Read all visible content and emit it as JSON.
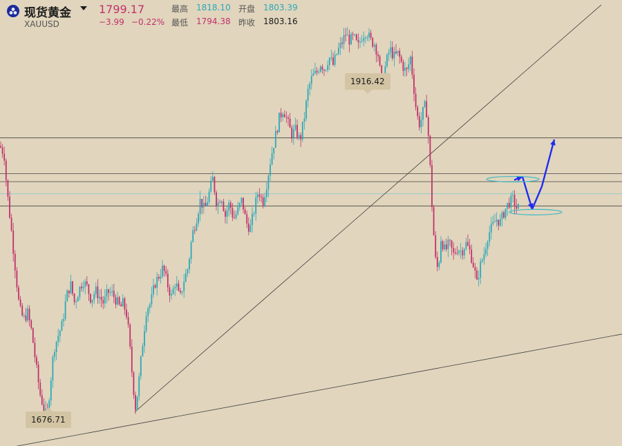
{
  "header": {
    "symbol_name": "现货黄金",
    "symbol_code": "XAUUSD",
    "last_price": "1799.17",
    "change": "−3.99",
    "change_pct": "−0.22%",
    "high_label": "最高",
    "high_value": "1818.10",
    "open_label": "开盘",
    "open_value": "1803.39",
    "low_label": "最低",
    "low_value": "1794.38",
    "prev_close_label": "昨收",
    "prev_close_value": "1803.16"
  },
  "colors": {
    "background": "#e1d5bd",
    "up": "#2aa8b8",
    "down": "#c0306a",
    "projection_arrow": "#1f2cf0",
    "ellipse": "#3fb8c4",
    "trendline": "#444444"
  },
  "chart_data": {
    "type": "candlestick",
    "instrument": "XAUUSD",
    "ylim": [
      1660,
      1935
    ],
    "max_label": "1916.42",
    "min_label": "1676.71",
    "path": [
      [
        0,
        1845
      ],
      [
        6,
        1840
      ],
      [
        10,
        1818
      ],
      [
        16,
        1795
      ],
      [
        22,
        1770
      ],
      [
        28,
        1745
      ],
      [
        34,
        1738
      ],
      [
        40,
        1742
      ],
      [
        46,
        1730
      ],
      [
        52,
        1710
      ],
      [
        58,
        1692
      ],
      [
        63,
        1684
      ],
      [
        68,
        1677
      ],
      [
        72,
        1695
      ],
      [
        78,
        1720
      ],
      [
        84,
        1728
      ],
      [
        90,
        1735
      ],
      [
        96,
        1752
      ],
      [
        102,
        1760
      ],
      [
        108,
        1748
      ],
      [
        114,
        1756
      ],
      [
        120,
        1762
      ],
      [
        126,
        1758
      ],
      [
        132,
        1750
      ],
      [
        138,
        1756
      ],
      [
        144,
        1752
      ],
      [
        150,
        1748
      ],
      [
        156,
        1755
      ],
      [
        162,
        1754
      ],
      [
        168,
        1750
      ],
      [
        174,
        1745
      ],
      [
        178,
        1748
      ],
      [
        184,
        1740
      ],
      [
        188,
        1720
      ],
      [
        192,
        1700
      ],
      [
        196,
        1684
      ],
      [
        200,
        1696
      ],
      [
        206,
        1722
      ],
      [
        212,
        1745
      ],
      [
        218,
        1748
      ],
      [
        224,
        1760
      ],
      [
        230,
        1765
      ],
      [
        236,
        1770
      ],
      [
        242,
        1760
      ],
      [
        248,
        1752
      ],
      [
        254,
        1762
      ],
      [
        260,
        1750
      ],
      [
        266,
        1762
      ],
      [
        272,
        1770
      ],
      [
        278,
        1790
      ],
      [
        284,
        1800
      ],
      [
        290,
        1812
      ],
      [
        296,
        1805
      ],
      [
        302,
        1815
      ],
      [
        308,
        1825
      ],
      [
        314,
        1808
      ],
      [
        320,
        1815
      ],
      [
        326,
        1802
      ],
      [
        332,
        1810
      ],
      [
        338,
        1800
      ],
      [
        344,
        1805
      ],
      [
        350,
        1812
      ],
      [
        356,
        1798
      ],
      [
        362,
        1794
      ],
      [
        368,
        1806
      ],
      [
        374,
        1818
      ],
      [
        380,
        1810
      ],
      [
        386,
        1822
      ],
      [
        392,
        1838
      ],
      [
        398,
        1850
      ],
      [
        404,
        1862
      ],
      [
        410,
        1868
      ],
      [
        416,
        1860
      ],
      [
        422,
        1852
      ],
      [
        428,
        1855
      ],
      [
        434,
        1848
      ],
      [
        440,
        1862
      ],
      [
        446,
        1880
      ],
      [
        452,
        1888
      ],
      [
        458,
        1890
      ],
      [
        464,
        1896
      ],
      [
        470,
        1892
      ],
      [
        476,
        1900
      ],
      [
        482,
        1895
      ],
      [
        488,
        1903
      ],
      [
        494,
        1908
      ],
      [
        500,
        1914
      ],
      [
        506,
        1910
      ],
      [
        512,
        1912
      ],
      [
        518,
        1906
      ],
      [
        524,
        1913
      ],
      [
        530,
        1916
      ],
      [
        536,
        1910
      ],
      [
        542,
        1908
      ],
      [
        548,
        1900
      ],
      [
        552,
        1880
      ],
      [
        558,
        1895
      ],
      [
        564,
        1905
      ],
      [
        570,
        1900
      ],
      [
        576,
        1902
      ],
      [
        582,
        1895
      ],
      [
        588,
        1890
      ],
      [
        594,
        1900
      ],
      [
        598,
        1884
      ],
      [
        602,
        1868
      ],
      [
        606,
        1858
      ],
      [
        610,
        1862
      ],
      [
        614,
        1870
      ],
      [
        618,
        1865
      ],
      [
        622,
        1835
      ],
      [
        626,
        1800
      ],
      [
        630,
        1775
      ],
      [
        634,
        1768
      ],
      [
        638,
        1788
      ],
      [
        644,
        1780
      ],
      [
        650,
        1785
      ],
      [
        656,
        1778
      ],
      [
        662,
        1782
      ],
      [
        668,
        1780
      ],
      [
        674,
        1785
      ],
      [
        680,
        1780
      ],
      [
        686,
        1770
      ],
      [
        690,
        1760
      ],
      [
        694,
        1770
      ],
      [
        700,
        1778
      ],
      [
        706,
        1790
      ],
      [
        712,
        1795
      ],
      [
        718,
        1800
      ],
      [
        724,
        1798
      ],
      [
        730,
        1805
      ],
      [
        736,
        1810
      ],
      [
        742,
        1812
      ],
      [
        748,
        1806
      ],
      [
        752,
        1808
      ]
    ],
    "horizontal_levels": [
      1850,
      1828,
      1823,
      1808
    ],
    "current_price_line": 1815.5,
    "trendlines": [
      [
        [
          195,
          1681
        ],
        [
          870,
          1932
        ]
      ],
      [
        [
          0,
          1658
        ],
        [
          900,
          1729
        ]
      ]
    ],
    "projection_path": [
      [
        744,
        1824
      ],
      [
        756,
        1826
      ],
      [
        770,
        1806
      ],
      [
        784,
        1820
      ],
      [
        802,
        1849
      ]
    ],
    "ellipses": [
      [
        742,
        1824.5
      ],
      [
        775,
        1804.2
      ]
    ]
  }
}
